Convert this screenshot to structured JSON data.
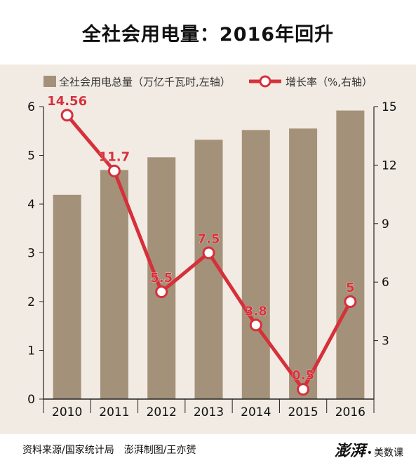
{
  "header": {
    "title": "全社会用电量：2016年回升"
  },
  "footer": {
    "source": "资料来源/国家统计局　澎湃制图/王亦赟",
    "logo_main": "澎湃",
    "logo_dot": "•",
    "logo_sub": "美数课"
  },
  "colors": {
    "bar": "#a49179",
    "line": "#d6303a",
    "panel": "#f1ebe3"
  },
  "chart_data": {
    "type": "bar+line",
    "categories": [
      "2010",
      "2011",
      "2012",
      "2013",
      "2014",
      "2015",
      "2016"
    ],
    "series": [
      {
        "name": "全社会用电总量（万亿千瓦时,左轴）",
        "type": "bar",
        "axis": "left",
        "values": [
          4.19,
          4.7,
          4.96,
          5.32,
          5.52,
          5.55,
          5.92
        ]
      },
      {
        "name": "增长率（%,右轴）",
        "type": "line",
        "axis": "right",
        "values": [
          14.56,
          11.7,
          5.5,
          7.5,
          3.8,
          0.5,
          5
        ],
        "labels": [
          "14.56",
          "11.7",
          "5.5",
          "7.5",
          "3.8",
          "0.5",
          "5"
        ]
      }
    ],
    "left_axis": {
      "ylim": [
        0,
        6
      ],
      "ticks": [
        "0",
        "1",
        "2",
        "3",
        "4",
        "5",
        "6"
      ]
    },
    "right_axis": {
      "ylim": [
        0,
        15
      ],
      "ticks": [
        "3",
        "6",
        "9",
        "12",
        "15"
      ]
    },
    "legend_position": "top",
    "grid": false
  }
}
